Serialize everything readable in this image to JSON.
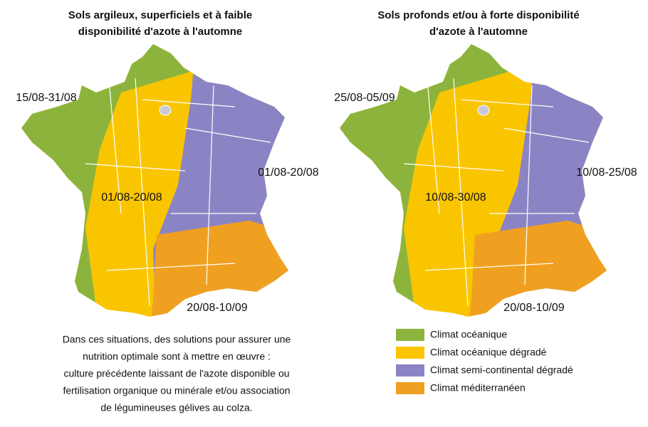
{
  "maps": [
    {
      "title": [
        "Sols argileux, superficiels et à faible",
        "disponibilité d'azote à l'automne"
      ],
      "labels": [
        "15/08-31/08",
        "01/08-20/08",
        "01/08-20/08",
        "20/08-10/09"
      ]
    },
    {
      "title": [
        "Sols profonds et/ou à forte disponibilité",
        "d'azote à l'automne"
      ],
      "labels": [
        "25/08-05/09",
        "10/08-25/08",
        "10/08-30/08",
        "20/08-10/09"
      ]
    }
  ],
  "note": [
    "Dans ces situations, des solutions pour assurer une",
    "nutrition optimale sont à mettre en œuvre :",
    "culture précédente laissant de l'azote disponible ou",
    "fertilisation organique ou minérale et/ou association",
    "de légumineuses gélives au colza."
  ],
  "legend": [
    {
      "color": "#8cb43c",
      "label": "Climat océanique"
    },
    {
      "color": "#f9c500",
      "label": "Climat océanique dégradé"
    },
    {
      "color": "#8b84c4",
      "label": "Climat semi-continental dégradé"
    },
    {
      "color": "#f0a020",
      "label": "Climat méditerranéen"
    }
  ]
}
